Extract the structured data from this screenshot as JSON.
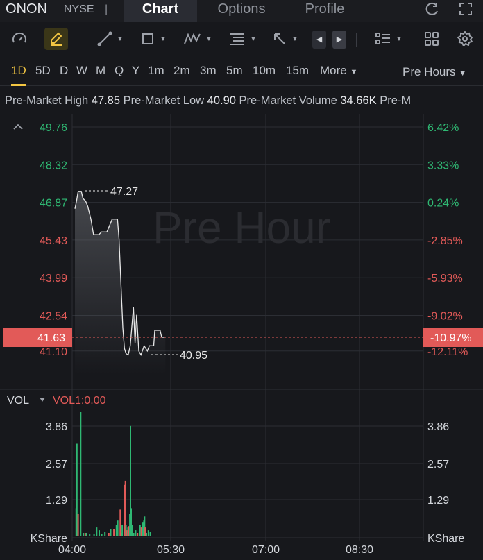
{
  "header": {
    "ticker": "ONON",
    "exchange": "NYSE",
    "separator": "|",
    "tabs": [
      "Chart",
      "Options",
      "Profile"
    ],
    "active_tab": "Chart"
  },
  "timeframes": {
    "items": [
      "1D",
      "5D",
      "D",
      "W",
      "M",
      "Q",
      "Y",
      "1m",
      "2m",
      "3m",
      "5m",
      "10m",
      "15m"
    ],
    "active": "1D",
    "more_label": "More",
    "session_label": "Pre Hours"
  },
  "stats": [
    {
      "label": "Pre-Market High",
      "value": "47.85"
    },
    {
      "label": "Pre-Market Low",
      "value": "40.90"
    },
    {
      "label": "Pre-Market Volume",
      "value": "34.66K"
    },
    {
      "label": "Pre-M",
      "value": ""
    }
  ],
  "price_chart": {
    "watermark": "Pre Hour",
    "y_left_labels": [
      "49.76",
      "48.32",
      "46.87",
      "45.43",
      "43.99",
      "42.54",
      "41.10"
    ],
    "y_right_labels": [
      "6.42%",
      "3.33%",
      "0.24%",
      "-2.85%",
      "-5.93%",
      "-9.02%",
      "-12.11%"
    ],
    "current_price": "41.63",
    "current_change": "-10.97%",
    "high_marker": "47.27",
    "low_marker": "40.95",
    "colors": {
      "up": "#2fb873",
      "down": "#e25a58",
      "line": "#e8e8e8",
      "current": "#e25a58"
    }
  },
  "volume_chart": {
    "label": "VOL",
    "indicator": "VOL1:0.00",
    "y_labels": [
      "3.86",
      "2.57",
      "1.29"
    ],
    "unit": "KShare",
    "x_labels": [
      "04:00",
      "05:30",
      "07:00",
      "08:30"
    ]
  },
  "chart_data": {
    "type": "line",
    "x": [
      "04:00",
      "04:05",
      "04:10",
      "04:15",
      "04:20",
      "04:25",
      "04:30",
      "04:35",
      "04:40",
      "04:45",
      "04:50",
      "04:55",
      "05:00",
      "05:05",
      "05:10",
      "05:15",
      "05:20",
      "05:25",
      "05:30",
      "05:35",
      "05:40",
      "05:45",
      "05:50",
      "05:55",
      "06:00"
    ],
    "series": [
      {
        "name": "",
        "values": [
          46.6,
          47.27,
          47.0,
          46.9,
          46.2,
          45.6,
          45.6,
          45.7,
          45.7,
          46.2,
          46.2,
          45.5,
          42.2,
          41.0,
          40.95,
          42.9,
          41.1,
          41.0,
          41.3,
          41.2,
          41.4,
          41.9,
          41.9,
          41.63,
          41.63
        ]
      }
    ],
    "ylim": [
      40.5,
      50.0
    ],
    "xlabel": "",
    "ylabel": "",
    "volume": {
      "type": "bar",
      "x_range": [
        "04:00",
        "09:30"
      ],
      "ylim": [
        0,
        4.5
      ],
      "bars": [
        {
          "t": 0.02,
          "v": 1.0,
          "c": "up"
        },
        {
          "t": 0.03,
          "v": 3.35,
          "c": "up"
        },
        {
          "t": 0.05,
          "v": 0.8,
          "c": "down"
        },
        {
          "t": 0.09,
          "v": 4.5,
          "c": "up"
        },
        {
          "t": 0.13,
          "v": 0.1,
          "c": "up"
        },
        {
          "t": 0.16,
          "v": 0.1,
          "c": "down"
        },
        {
          "t": 0.18,
          "v": 0.1,
          "c": "up"
        },
        {
          "t": 0.23,
          "v": 0.05,
          "c": "up"
        },
        {
          "t": 0.3,
          "v": 0.05,
          "c": "up"
        },
        {
          "t": 0.34,
          "v": 0.3,
          "c": "up"
        },
        {
          "t": 0.38,
          "v": 0.2,
          "c": "up"
        },
        {
          "t": 0.42,
          "v": 0.05,
          "c": "up"
        },
        {
          "t": 0.47,
          "v": 0.15,
          "c": "up"
        },
        {
          "t": 0.53,
          "v": 0.1,
          "c": "down"
        },
        {
          "t": 0.56,
          "v": 0.25,
          "c": "up"
        },
        {
          "t": 0.61,
          "v": 0.25,
          "c": "down"
        },
        {
          "t": 0.65,
          "v": 0.4,
          "c": "up"
        },
        {
          "t": 0.67,
          "v": 0.55,
          "c": "up"
        },
        {
          "t": 0.71,
          "v": 0.95,
          "c": "down"
        },
        {
          "t": 0.73,
          "v": 0.1,
          "c": "up"
        },
        {
          "t": 0.74,
          "v": 0.4,
          "c": "up"
        },
        {
          "t": 0.78,
          "v": 1.85,
          "c": "down"
        },
        {
          "t": 0.79,
          "v": 2.0,
          "c": "down"
        },
        {
          "t": 0.8,
          "v": 0.4,
          "c": "up"
        },
        {
          "t": 0.81,
          "v": 0.2,
          "c": "down"
        },
        {
          "t": 0.83,
          "v": 0.3,
          "c": "up"
        },
        {
          "t": 0.84,
          "v": 0.35,
          "c": "down"
        },
        {
          "t": 0.86,
          "v": 0.8,
          "c": "up"
        },
        {
          "t": 0.87,
          "v": 4.0,
          "c": "up"
        },
        {
          "t": 0.88,
          "v": 1.0,
          "c": "up"
        },
        {
          "t": 0.9,
          "v": 0.4,
          "c": "up"
        },
        {
          "t": 0.92,
          "v": 0.1,
          "c": "up"
        },
        {
          "t": 0.95,
          "v": 0.2,
          "c": "up"
        },
        {
          "t": 0.98,
          "v": 0.1,
          "c": "down"
        },
        {
          "t": 1.02,
          "v": 0.4,
          "c": "up"
        },
        {
          "t": 1.04,
          "v": 0.3,
          "c": "down"
        },
        {
          "t": 1.06,
          "v": 0.5,
          "c": "up"
        },
        {
          "t": 1.08,
          "v": 0.55,
          "c": "up"
        },
        {
          "t": 1.09,
          "v": 0.7,
          "c": "up"
        },
        {
          "t": 1.1,
          "v": 0.3,
          "c": "down"
        },
        {
          "t": 1.12,
          "v": 0.1,
          "c": "up"
        },
        {
          "t": 1.15,
          "v": 0.2,
          "c": "up"
        },
        {
          "t": 1.18,
          "v": 0.15,
          "c": "up"
        }
      ]
    }
  }
}
